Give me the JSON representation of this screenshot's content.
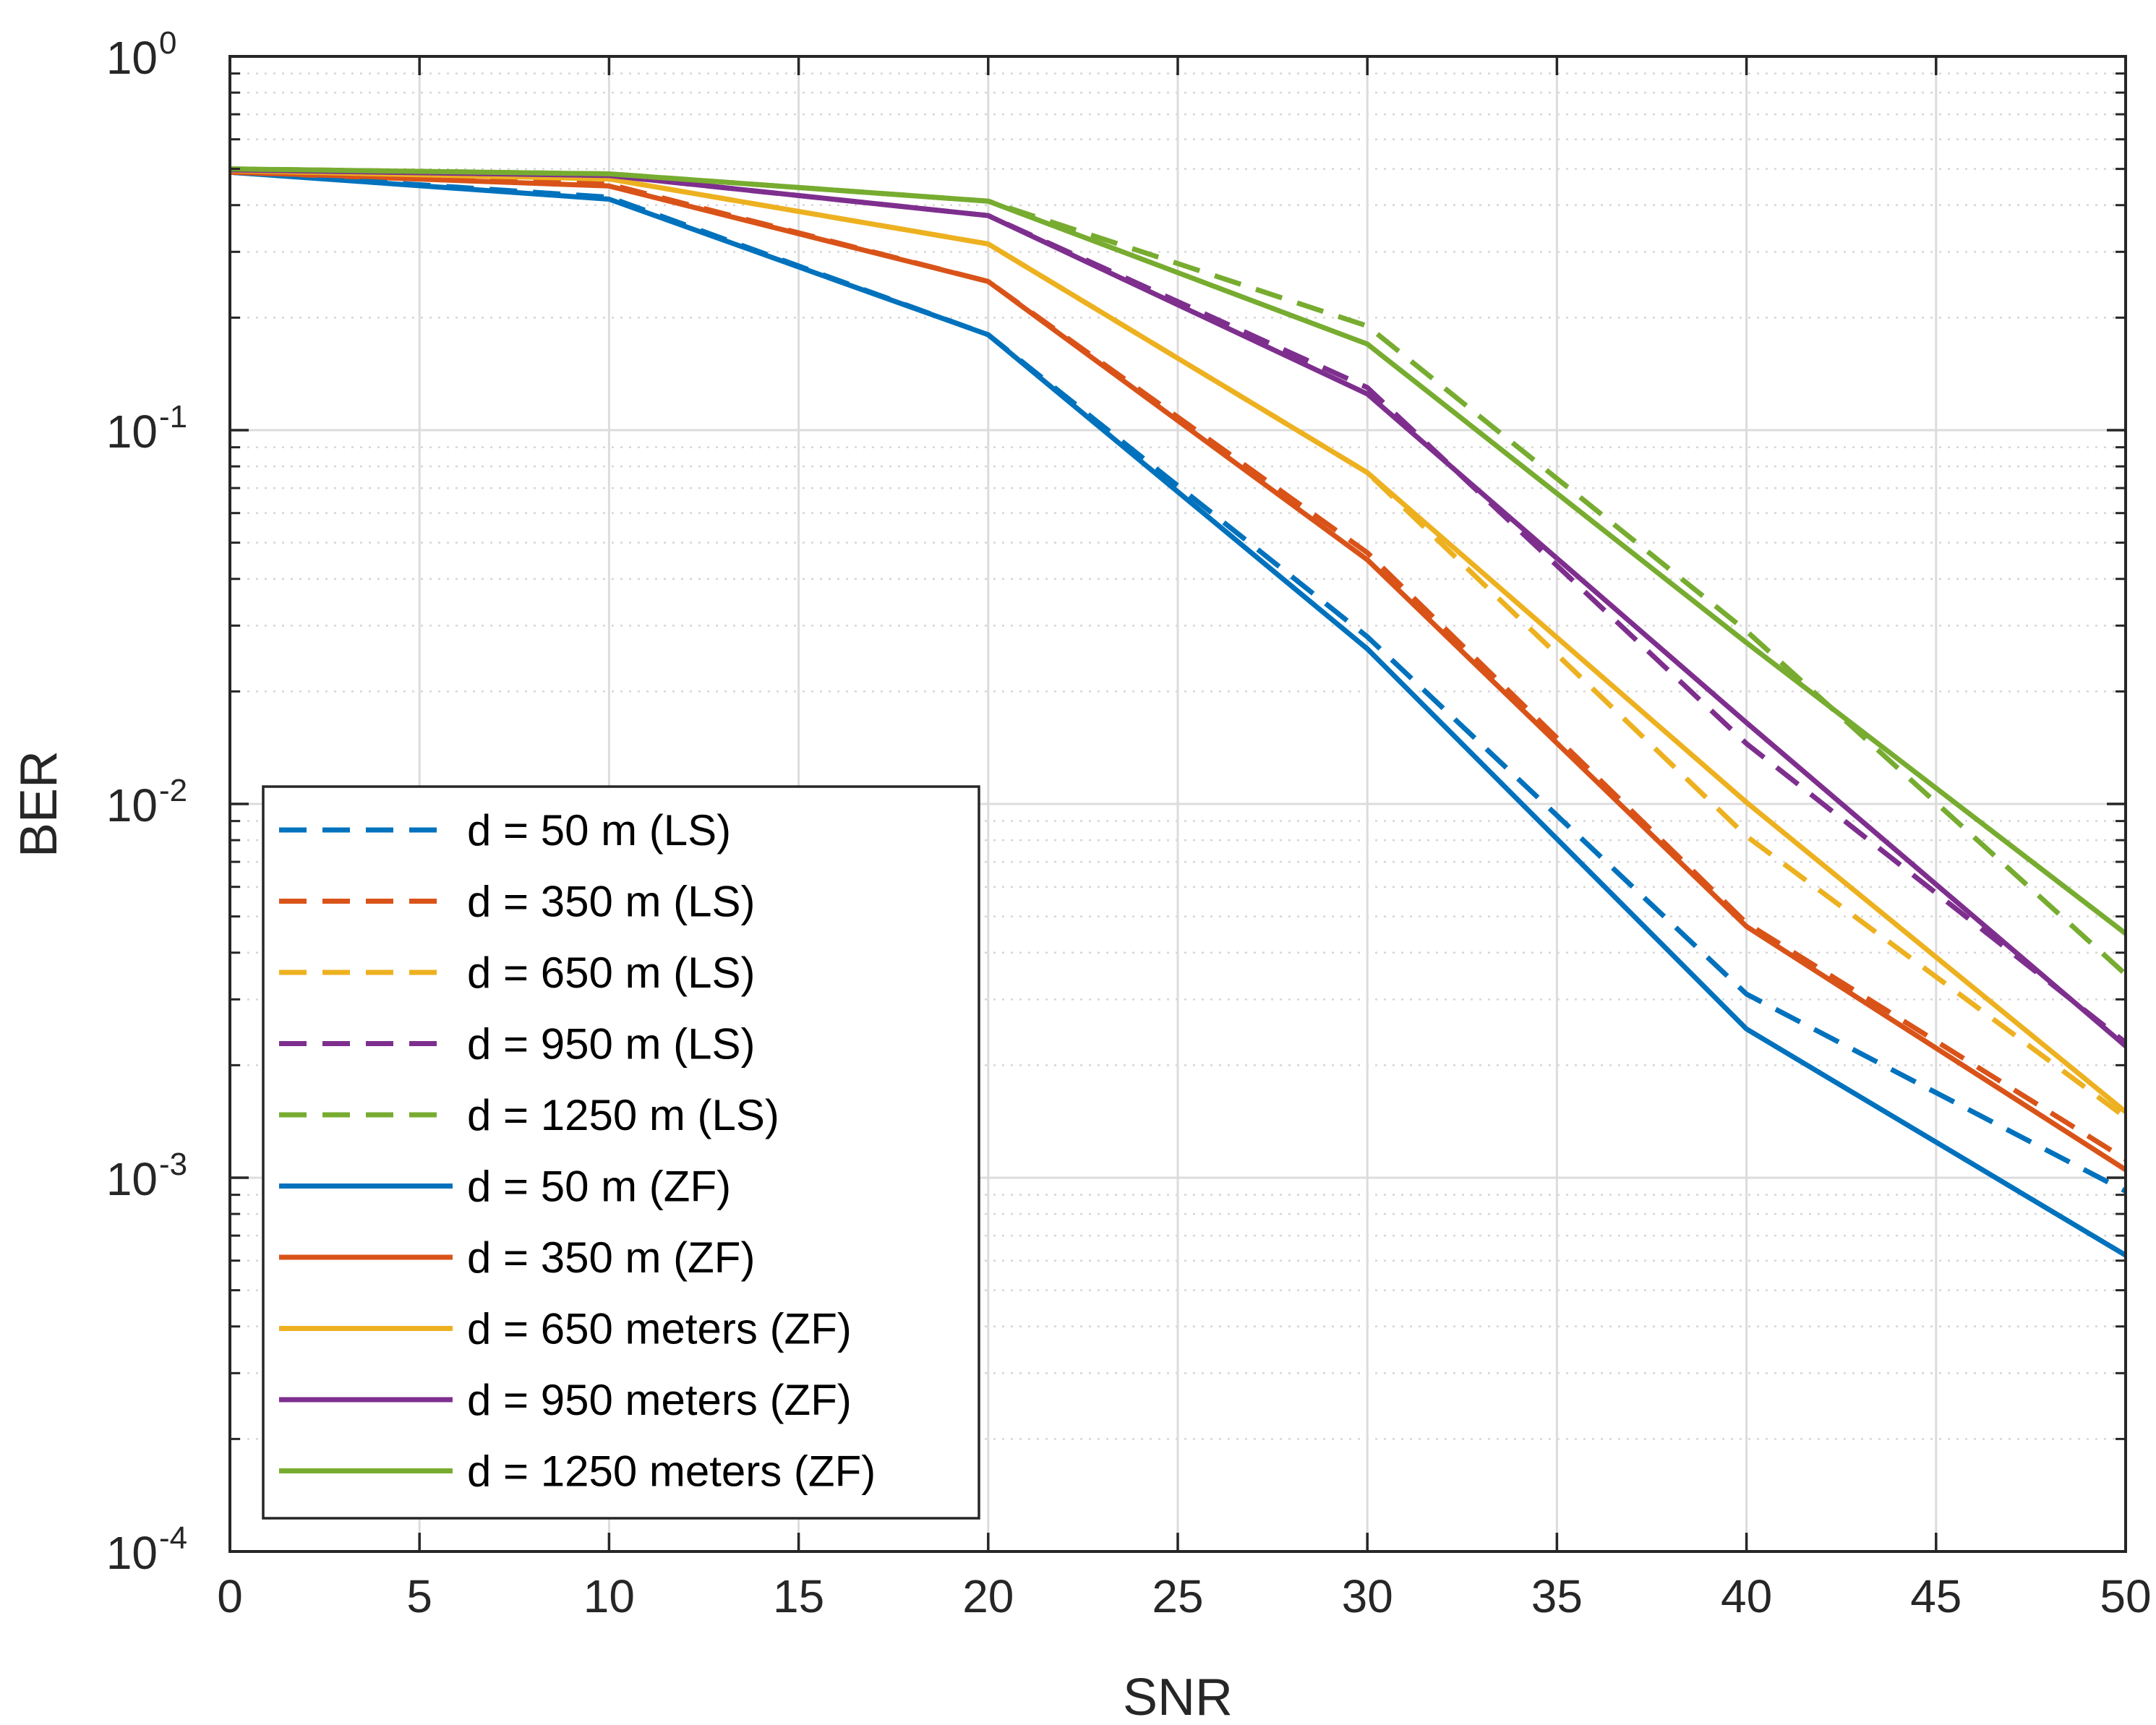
{
  "chart_data": {
    "type": "line",
    "title": "",
    "xlabel": "SNR",
    "ylabel": "BER",
    "xlim": [
      0,
      50
    ],
    "ylim": [
      0.0001,
      1
    ],
    "yscale": "log",
    "grid": true,
    "legend_position": "bottom-left",
    "x": [
      0,
      10,
      20,
      30,
      40,
      50
    ],
    "x_ticks": [
      0,
      5,
      10,
      15,
      20,
      25,
      30,
      35,
      40,
      45,
      50
    ],
    "x_tick_labels": [
      "0",
      "5",
      "10",
      "15",
      "20",
      "25",
      "30",
      "35",
      "40",
      "45",
      "50"
    ],
    "y_ticks": [
      {
        "value": 1,
        "base": "10",
        "exp": "0"
      },
      {
        "value": 0.1,
        "base": "10",
        "exp": "-1"
      },
      {
        "value": 0.01,
        "base": "10",
        "exp": "-2"
      },
      {
        "value": 0.001,
        "base": "10",
        "exp": "-3"
      },
      {
        "value": 0.0001,
        "base": "10",
        "exp": "-4"
      }
    ],
    "series": [
      {
        "name": "d = 50 m (LS)",
        "color": "#0072BD",
        "dash": true,
        "values": [
          0.49,
          0.42,
          0.18,
          0.028,
          0.0031,
          0.00092
        ]
      },
      {
        "name": "d = 350 m (LS)",
        "color": "#D95319",
        "dash": true,
        "values": [
          0.49,
          0.455,
          0.25,
          0.047,
          0.0048,
          0.00112
        ]
      },
      {
        "name": "d = 650 m (LS)",
        "color": "#EDB120",
        "dash": true,
        "values": [
          0.495,
          0.47,
          0.315,
          0.077,
          0.0082,
          0.00145
        ]
      },
      {
        "name": "d = 950 m (LS)",
        "color": "#7E2F8E",
        "dash": true,
        "values": [
          0.497,
          0.48,
          0.375,
          0.13,
          0.0145,
          0.0023
        ]
      },
      {
        "name": "d = 1250 m (LS)",
        "color": "#77AC30",
        "dash": true,
        "values": [
          0.5,
          0.485,
          0.41,
          0.19,
          0.029,
          0.0035
        ]
      },
      {
        "name": "d = 50 m (ZF)",
        "color": "#0072BD",
        "dash": false,
        "values": [
          0.49,
          0.415,
          0.18,
          0.026,
          0.0025,
          0.00062
        ]
      },
      {
        "name": "d = 350 m (ZF)",
        "color": "#D95319",
        "dash": false,
        "values": [
          0.49,
          0.45,
          0.25,
          0.045,
          0.0047,
          0.00105
        ]
      },
      {
        "name": "d = 650 meters (ZF)",
        "color": "#EDB120",
        "dash": false,
        "values": [
          0.495,
          0.47,
          0.315,
          0.077,
          0.0101,
          0.0015
        ]
      },
      {
        "name": "d = 950 meters (ZF)",
        "color": "#7E2F8E",
        "dash": false,
        "values": [
          0.497,
          0.48,
          0.375,
          0.125,
          0.0165,
          0.00225
        ]
      },
      {
        "name": "d = 1250 meters (ZF)",
        "color": "#77AC30",
        "dash": false,
        "values": [
          0.5,
          0.485,
          0.41,
          0.17,
          0.027,
          0.0045
        ]
      }
    ]
  }
}
